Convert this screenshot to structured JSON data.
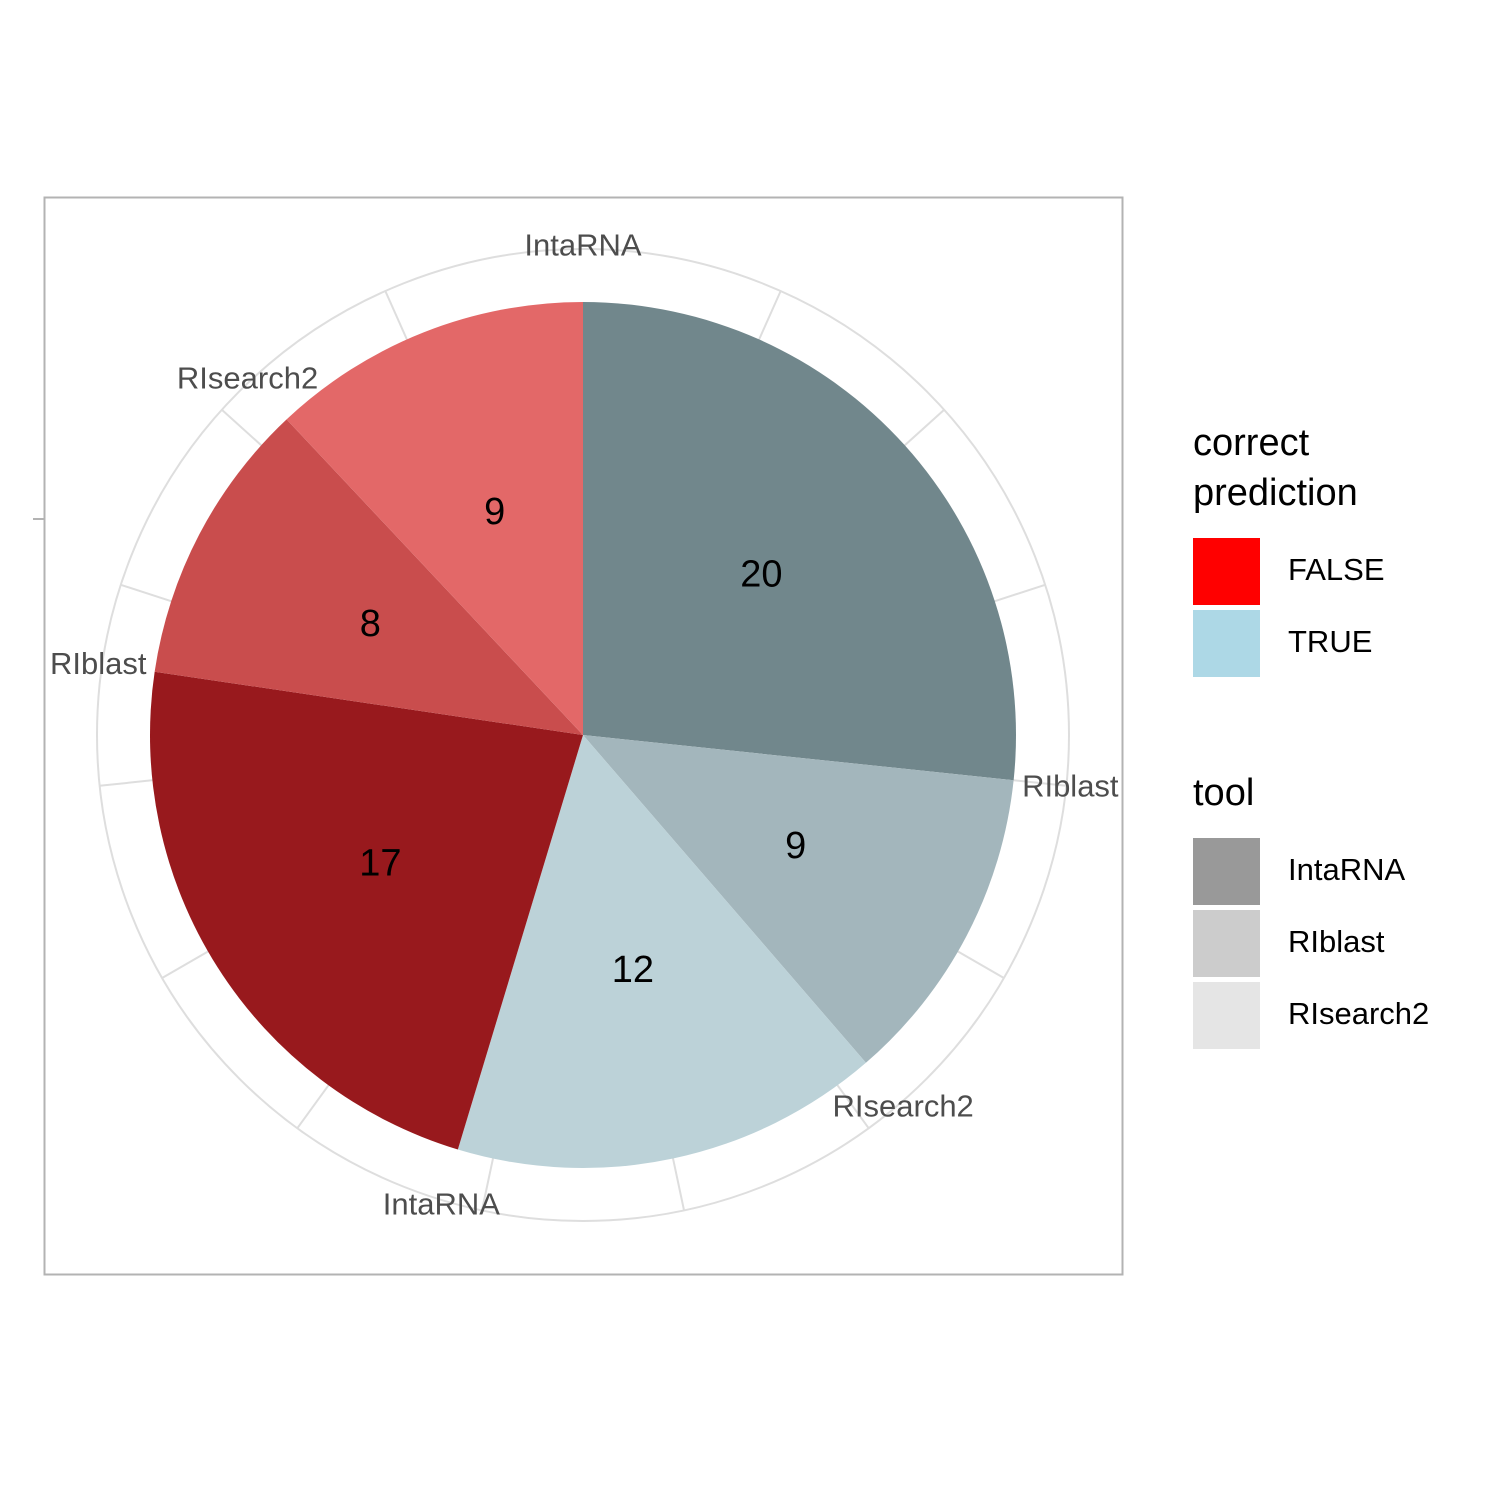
{
  "chart_data": {
    "type": "pie",
    "slices": [
      {
        "fill": "prediction",
        "tool": "IntaRNA",
        "correct": "TRUE",
        "value": 20,
        "color": "#71878c"
      },
      {
        "fill": "prediction",
        "tool": "RIblast",
        "correct": "TRUE",
        "value": 9,
        "color": "#a3b6bc"
      },
      {
        "fill": "prediction",
        "tool": "RIsearch2",
        "correct": "TRUE",
        "value": 12,
        "color": "#bcd2d8"
      },
      {
        "fill": "prediction",
        "tool": "IntaRNA",
        "correct": "FALSE",
        "value": 17,
        "color": "#98191d"
      },
      {
        "fill": "prediction",
        "tool": "RIblast",
        "correct": "FALSE",
        "value": 8,
        "color": "#c94d4d"
      },
      {
        "fill": "prediction",
        "tool": "RIsearch2",
        "correct": "FALSE",
        "value": 9,
        "color": "#e36868"
      }
    ],
    "grid": true,
    "legend_placement": "right"
  },
  "legend": {
    "correct": {
      "title_line1": "correct",
      "title_line2": "prediction",
      "items": [
        {
          "label": "FALSE",
          "color": "#ff0000"
        },
        {
          "label": "TRUE",
          "color": "#add8e6"
        }
      ]
    },
    "tool": {
      "title": "tool",
      "items": [
        {
          "label": "IntaRNA",
          "color": "#999999"
        },
        {
          "label": "RIblast",
          "color": "#cccccc"
        },
        {
          "label": "RIsearch2",
          "color": "#e5e5e5"
        }
      ]
    }
  }
}
